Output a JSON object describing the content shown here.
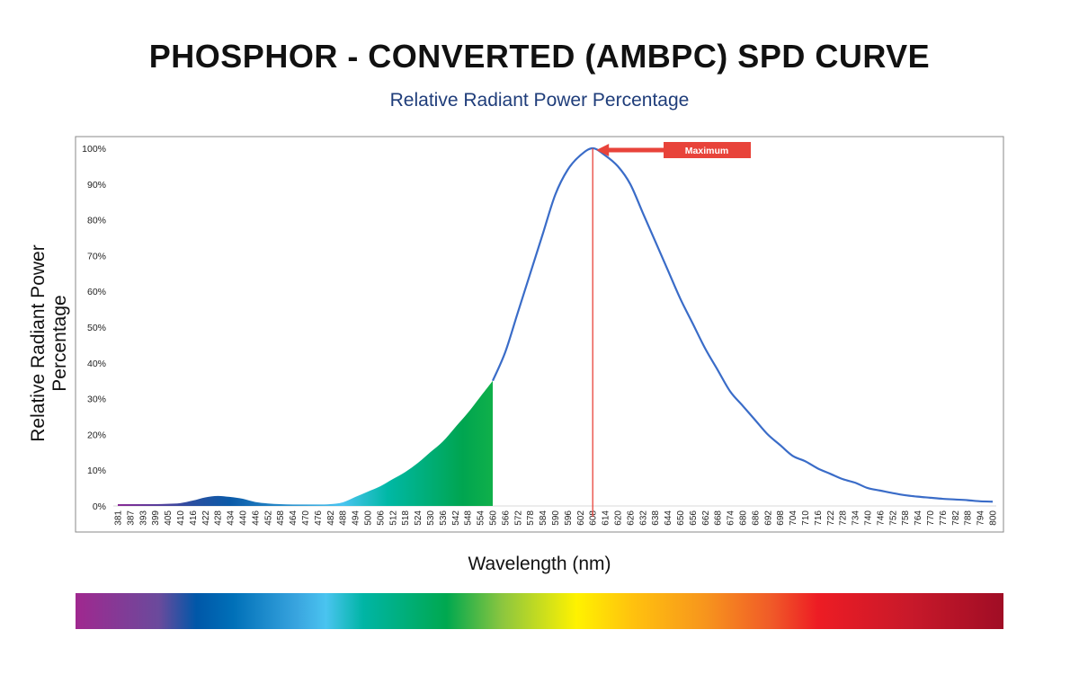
{
  "chart_data": {
    "type": "area",
    "title": "PHOSPHOR - CONVERTED (AMBPC) SPD CURVE",
    "subtitle": "Relative Radiant Power Percentage",
    "xlabel": "Wavelength (nm)",
    "ylabel": "Relative Radiant Power Percentage",
    "ylim": [
      0,
      100
    ],
    "yticks": [
      "0%",
      "10%",
      "20%",
      "30%",
      "40%",
      "50%",
      "60%",
      "70%",
      "80%",
      "90%",
      "100%"
    ],
    "x": [
      381,
      387,
      393,
      399,
      405,
      410,
      416,
      422,
      428,
      434,
      440,
      446,
      452,
      458,
      464,
      470,
      476,
      482,
      488,
      494,
      500,
      506,
      512,
      518,
      524,
      530,
      536,
      542,
      548,
      554,
      560,
      566,
      572,
      578,
      584,
      590,
      596,
      602,
      608,
      614,
      620,
      626,
      632,
      638,
      644,
      650,
      656,
      662,
      668,
      674,
      680,
      686,
      692,
      698,
      704,
      710,
      716,
      722,
      728,
      734,
      740,
      746,
      752,
      758,
      764,
      770,
      776,
      782,
      788,
      794,
      800
    ],
    "y": [
      0.5,
      0.5,
      0.5,
      0.5,
      0.6,
      0.8,
      1.5,
      2.4,
      2.8,
      2.5,
      2.0,
      1.1,
      0.7,
      0.5,
      0.4,
      0.4,
      0.4,
      0.5,
      1.0,
      2.5,
      4.0,
      5.5,
      7.5,
      9.5,
      12,
      15,
      18,
      22,
      26,
      30.5,
      35,
      43,
      54,
      65,
      76,
      87,
      94,
      98,
      100,
      98,
      95,
      90,
      82,
      74,
      66,
      58,
      51,
      44,
      38,
      32,
      28,
      24,
      20,
      17,
      14,
      12.5,
      10.5,
      9,
      7.5,
      6.5,
      5,
      4.3,
      3.6,
      3,
      2.6,
      2.3,
      2,
      1.8,
      1.6,
      1.3,
      1.2
    ],
    "filled_range": [
      381,
      560
    ],
    "annotation": {
      "label": "Maximum",
      "x": 608
    },
    "grid": false,
    "line_color": "#3a6cc8",
    "marker_color": "#e8433a"
  }
}
